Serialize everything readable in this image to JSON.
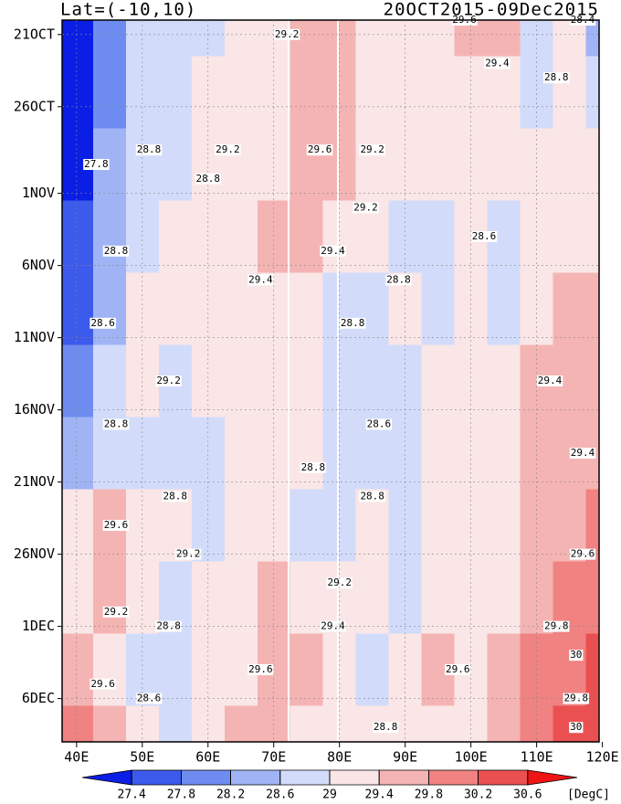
{
  "chart_data": {
    "type": "heatmap",
    "title": "Lat=(-10,10)",
    "subtitle": "20OCT2015-09Dec2015",
    "units": "[DegC]",
    "xlim": [
      37.8,
      119.5
    ],
    "ylim": [
      "2015-10-20",
      "2015-12-09"
    ],
    "xticks": [
      {
        "value": 40,
        "label": "40E"
      },
      {
        "value": 50,
        "label": "50E"
      },
      {
        "value": 60,
        "label": "60E"
      },
      {
        "value": 70,
        "label": "70E"
      },
      {
        "value": 80,
        "label": "80E"
      },
      {
        "value": 90,
        "label": "90E"
      },
      {
        "value": 100,
        "label": "100E"
      },
      {
        "value": 110,
        "label": "110E"
      },
      {
        "value": 120,
        "label": "120E"
      }
    ],
    "yticks": [
      {
        "value": "2015-10-21",
        "label": "21OCT"
      },
      {
        "value": "2015-10-26",
        "label": "26OCT"
      },
      {
        "value": "2015-11-01",
        "label": "1NOV"
      },
      {
        "value": "2015-11-06",
        "label": "6NOV"
      },
      {
        "value": "2015-11-11",
        "label": "11NOV"
      },
      {
        "value": "2015-11-16",
        "label": "16NOV"
      },
      {
        "value": "2015-11-21",
        "label": "21NOV"
      },
      {
        "value": "2015-11-26",
        "label": "26NOV"
      },
      {
        "value": "2015-12-01",
        "label": "1DEC"
      },
      {
        "value": "2015-12-06",
        "label": "6DEC"
      }
    ],
    "x": [
      40,
      45,
      50,
      55,
      60,
      65,
      70,
      75,
      80,
      85,
      90,
      95,
      100,
      105,
      110,
      115,
      120
    ],
    "y": [
      "2015-10-20",
      "2015-10-25",
      "2015-10-30",
      "2015-11-04",
      "2015-11-09",
      "2015-11-14",
      "2015-11-19",
      "2015-11-24",
      "2015-11-29",
      "2015-12-04",
      "2015-12-09"
    ],
    "values": [
      [
        27.2,
        28.0,
        28.6,
        28.8,
        28.9,
        29.1,
        29.2,
        29.5,
        29.5,
        29.3,
        29.2,
        29.3,
        29.6,
        29.4,
        28.9,
        29.2,
        28.5
      ],
      [
        27.3,
        28.0,
        28.7,
        28.9,
        29.0,
        29.1,
        29.2,
        29.5,
        29.4,
        29.2,
        29.1,
        29.2,
        29.3,
        29.2,
        28.6,
        29.1,
        28.8
      ],
      [
        27.3,
        28.2,
        28.8,
        28.9,
        29.1,
        29.2,
        29.3,
        29.6,
        29.5,
        29.1,
        29.0,
        29.1,
        29.2,
        29.0,
        29.0,
        29.2,
        29.0
      ],
      [
        27.4,
        28.4,
        28.9,
        29.0,
        29.2,
        29.3,
        29.4,
        29.5,
        29.2,
        29.0,
        28.9,
        28.9,
        29.0,
        28.6,
        29.2,
        29.3,
        29.3
      ],
      [
        27.6,
        28.5,
        29.0,
        29.1,
        29.1,
        29.2,
        29.2,
        29.2,
        28.9,
        28.9,
        29.0,
        28.9,
        29.2,
        28.7,
        29.3,
        29.4,
        29.5
      ],
      [
        28.0,
        28.8,
        29.0,
        28.9,
        29.0,
        29.1,
        29.2,
        29.1,
        28.9,
        28.7,
        28.8,
        29.0,
        29.3,
        29.2,
        29.5,
        29.6,
        29.7
      ],
      [
        28.4,
        28.9,
        28.8,
        28.7,
        28.8,
        29.0,
        29.1,
        29.0,
        28.8,
        28.6,
        28.8,
        29.0,
        29.3,
        29.3,
        29.4,
        29.5,
        29.6
      ],
      [
        29.1,
        29.6,
        29.2,
        29.0,
        28.9,
        29.0,
        29.1,
        28.9,
        28.8,
        29.0,
        28.9,
        29.0,
        29.2,
        29.0,
        29.4,
        29.6,
        29.8
      ],
      [
        29.3,
        29.5,
        29.1,
        28.8,
        29.0,
        29.2,
        29.4,
        29.3,
        29.0,
        29.0,
        28.8,
        29.1,
        29.3,
        29.3,
        29.6,
        29.8,
        30.0
      ],
      [
        29.6,
        29.2,
        28.8,
        28.6,
        29.0,
        29.3,
        29.5,
        29.4,
        29.1,
        28.9,
        29.0,
        29.4,
        29.3,
        29.5,
        29.8,
        30.1,
        30.2
      ],
      [
        29.9,
        29.5,
        29.0,
        28.7,
        29.1,
        29.4,
        29.6,
        29.3,
        29.2,
        29.0,
        29.1,
        29.3,
        29.2,
        29.6,
        30.0,
        30.3,
        30.2
      ]
    ],
    "levels": [
      27.4,
      27.8,
      28.2,
      28.6,
      29,
      29.4,
      29.8,
      30.2,
      30.6
    ],
    "colors": [
      "#0a1ee6",
      "#3c5aeb",
      "#6e8cf0",
      "#a0b4f5",
      "#d2dcfa",
      "#fae6e6",
      "#f5b4b4",
      "#f08282",
      "#eb5050",
      "#f01414"
    ],
    "contour_labels": [
      {
        "x": 72,
        "y": "2015-10-21",
        "value": 29.2
      },
      {
        "x": 99,
        "y": "2015-10-20",
        "value": 29.6
      },
      {
        "x": 117,
        "y": "2015-10-20",
        "value": 28.4
      },
      {
        "x": 104,
        "y": "2015-10-23",
        "value": 29.4
      },
      {
        "x": 113,
        "y": "2015-10-24",
        "value": 28.8
      },
      {
        "x": 43,
        "y": "2015-10-30",
        "value": 27.8
      },
      {
        "x": 51,
        "y": "2015-10-29",
        "value": 28.8
      },
      {
        "x": 63,
        "y": "2015-10-29",
        "value": 29.2
      },
      {
        "x": 77,
        "y": "2015-10-29",
        "value": 29.6
      },
      {
        "x": 85,
        "y": "2015-10-29",
        "value": 29.2
      },
      {
        "x": 60,
        "y": "2015-10-31",
        "value": 28.8
      },
      {
        "x": 84,
        "y": "2015-11-02",
        "value": 29.2
      },
      {
        "x": 102,
        "y": "2015-11-04",
        "value": 28.6
      },
      {
        "x": 46,
        "y": "2015-11-05",
        "value": 28.8
      },
      {
        "x": 79,
        "y": "2015-11-05",
        "value": 29.4
      },
      {
        "x": 68,
        "y": "2015-11-07",
        "value": 29.4
      },
      {
        "x": 89,
        "y": "2015-11-07",
        "value": 28.8
      },
      {
        "x": 44,
        "y": "2015-11-10",
        "value": 28.6
      },
      {
        "x": 82,
        "y": "2015-11-10",
        "value": 28.8
      },
      {
        "x": 54,
        "y": "2015-11-14",
        "value": 29.2
      },
      {
        "x": 46,
        "y": "2015-11-17",
        "value": 28.8
      },
      {
        "x": 86,
        "y": "2015-11-17",
        "value": 28.6
      },
      {
        "x": 112,
        "y": "2015-11-14",
        "value": 29.4
      },
      {
        "x": 55,
        "y": "2015-11-22",
        "value": 28.8
      },
      {
        "x": 46,
        "y": "2015-11-24",
        "value": 29.6
      },
      {
        "x": 117,
        "y": "2015-11-19",
        "value": 29.4
      },
      {
        "x": 76,
        "y": "2015-11-20",
        "value": 28.8
      },
      {
        "x": 85,
        "y": "2015-11-22",
        "value": 28.8
      },
      {
        "x": 57,
        "y": "2015-11-26",
        "value": 29.2
      },
      {
        "x": 117,
        "y": "2015-11-26",
        "value": 29.6
      },
      {
        "x": 80,
        "y": "2015-11-28",
        "value": 29.2
      },
      {
        "x": 46,
        "y": "2015-11-30",
        "value": 29.2
      },
      {
        "x": 54,
        "y": "2015-12-01",
        "value": 28.8
      },
      {
        "x": 79,
        "y": "2015-12-01",
        "value": 29.4
      },
      {
        "x": 113,
        "y": "2015-12-01",
        "value": 29.8
      },
      {
        "x": 116,
        "y": "2015-12-03",
        "value": 30
      },
      {
        "x": 68,
        "y": "2015-12-04",
        "value": 29.6
      },
      {
        "x": 98,
        "y": "2015-12-04",
        "value": 29.6
      },
      {
        "x": 44,
        "y": "2015-12-05",
        "value": 29.6
      },
      {
        "x": 51,
        "y": "2015-12-06",
        "value": 28.6
      },
      {
        "x": 87,
        "y": "2015-12-08",
        "value": 28.8
      },
      {
        "x": 116,
        "y": "2015-12-06",
        "value": 29.8
      },
      {
        "x": 116,
        "y": "2015-12-08",
        "value": 30
      }
    ]
  }
}
